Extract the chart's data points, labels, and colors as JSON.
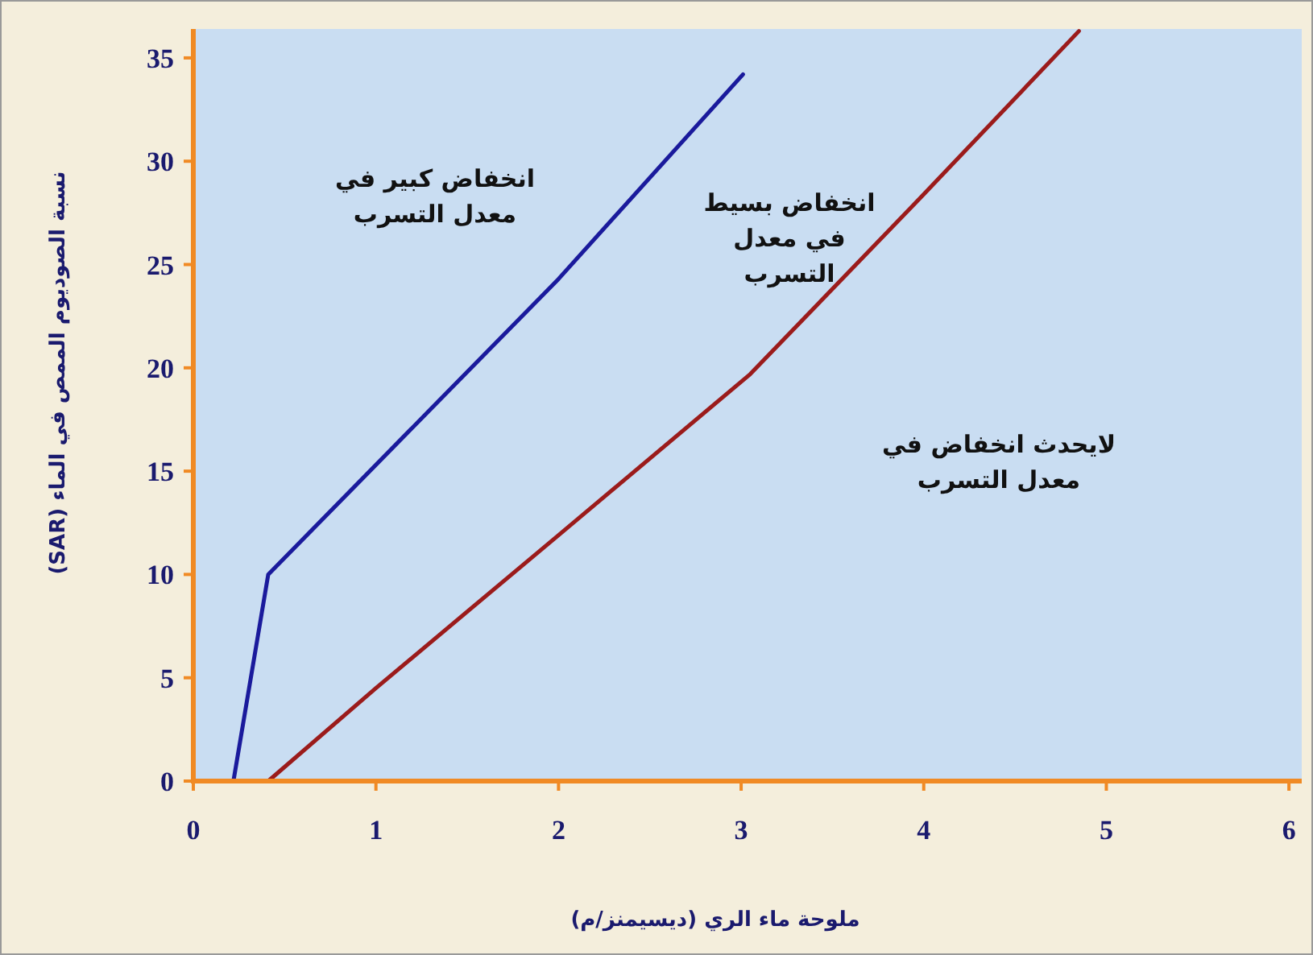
{
  "chart_data": {
    "type": "line",
    "xlabel": "ملوحة ماء الري (ديسيمنز/م)",
    "ylabel": "نسبة الصوديوم الممص في الماء (SAR)",
    "series": [
      {
        "color": "#1a1a9c",
        "x": [
          0.22,
          0.41,
          2.0,
          3.01
        ],
        "values": [
          0,
          10,
          24.3,
          34.2
        ]
      },
      {
        "color": "#9b1b1b",
        "x": [
          0.41,
          1.0,
          2.0,
          3.05,
          3.99,
          4.85
        ],
        "values": [
          0,
          4.5,
          11.9,
          19.7,
          28.3,
          36.3
        ]
      }
    ],
    "annotations": [
      "انخفاض كبير في معدل التسرب",
      "انخفاض بسيط في معدل التسرب",
      "لايحدث انخفاض في معدل التسرب"
    ],
    "xlim": [
      0,
      6.07
    ],
    "ylim": [
      0,
      36.4
    ],
    "xticks": [
      0,
      1,
      2,
      3,
      4,
      5,
      6
    ],
    "yticks": [
      0,
      5,
      10,
      15,
      20,
      25,
      30,
      35
    ],
    "grid": false,
    "marker": "none",
    "line_style": "solid"
  }
}
